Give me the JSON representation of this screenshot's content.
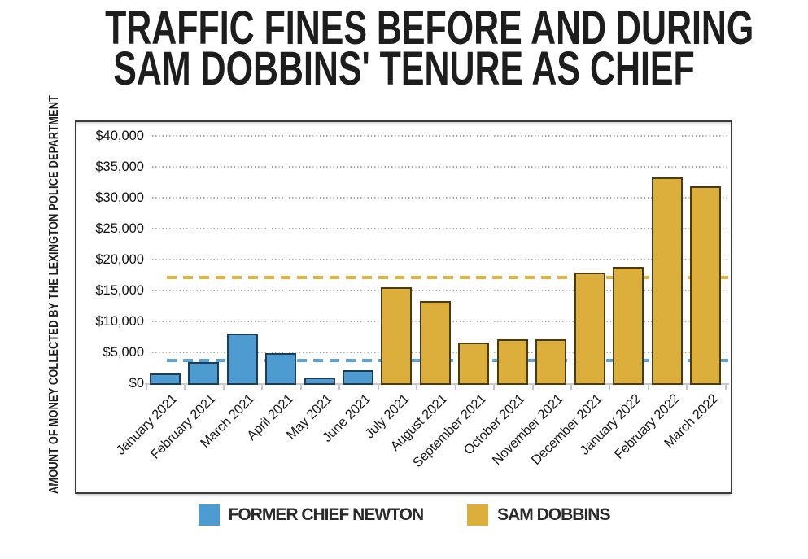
{
  "title": {
    "line1": "TRAFFIC FINES BEFORE AND DURING",
    "line2": "SAM DOBBINS' TENURE AS CHIEF"
  },
  "y_axis_title": "AMOUNT OF MONEY COLLECTED BY THE LEXINGTON POLICE DEPARTMENT",
  "chart_data": {
    "type": "bar",
    "title": "TRAFFIC FINES BEFORE AND DURING SAM DOBBINS' TENURE AS CHIEF",
    "ylabel": "AMOUNT OF MONEY COLLECTED BY THE LEXINGTON POLICE DEPARTMENT",
    "xlabel": "",
    "ylim": [
      0,
      40000
    ],
    "ytick_step": 5000,
    "ytick_labels": [
      "$0",
      "$5,000",
      "$10,000",
      "$15,000",
      "$20,000",
      "$25,000",
      "$30,000",
      "$35,000",
      "$40,000"
    ],
    "grid": "horizontal dotted",
    "legend_position": "bottom",
    "categories": [
      "January 2021",
      "February 2021",
      "March 2021",
      "April 2021",
      "May 2021",
      "June 2021",
      "July 2021",
      "August 2021",
      "September 2021",
      "October 2021",
      "November 2021",
      "December 2021",
      "January 2022",
      "February 2022",
      "March 2022"
    ],
    "series": [
      {
        "name": "FORMER CHIEF NEWTON",
        "color": "#4E9BD2",
        "border_color": "#1E3C55",
        "values": [
          1800,
          3700,
          8300,
          5100,
          1200,
          2400,
          null,
          null,
          null,
          null,
          null,
          null,
          null,
          null,
          null
        ]
      },
      {
        "name": "SAM DOBBINS",
        "color": "#DCAE3C",
        "border_color": "#4A3A0E",
        "values": [
          null,
          null,
          null,
          null,
          null,
          null,
          15800,
          13500,
          6900,
          7400,
          7400,
          18200,
          19100,
          33600,
          32100
        ]
      }
    ],
    "average_lines": [
      {
        "series": "FORMER CHIEF NEWTON",
        "value": 3750,
        "color": "#5BA3D9",
        "style": "dashed"
      },
      {
        "series": "SAM DOBBINS",
        "value": 17100,
        "color": "#E3B33C",
        "style": "dashed"
      }
    ]
  },
  "legend": {
    "items": [
      {
        "label": "FORMER CHIEF NEWTON"
      },
      {
        "label": "SAM DOBBINS"
      }
    ]
  }
}
